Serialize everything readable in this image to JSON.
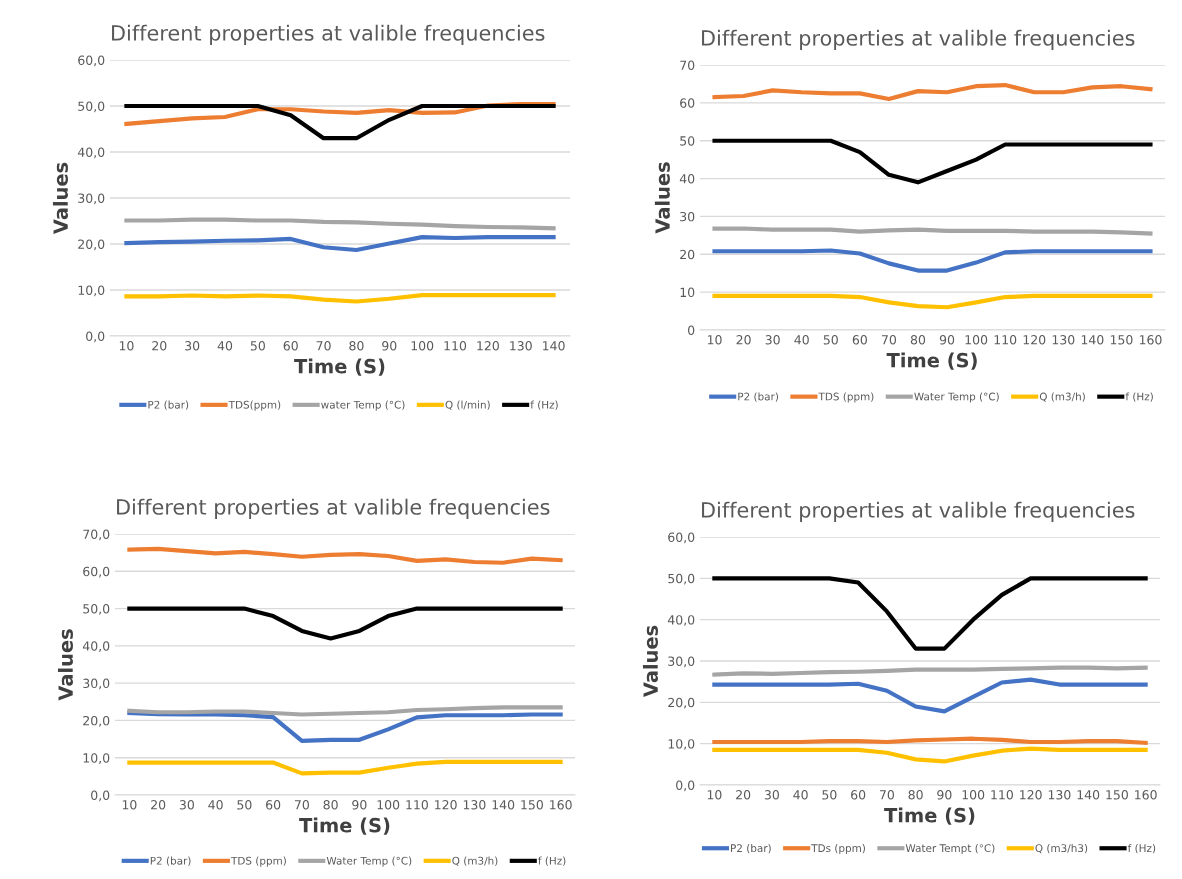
{
  "chart_data": [
    {
      "type": "line",
      "title": "Different properties at valible frequencies",
      "xlabel": "Time (S)",
      "ylabel": "Values",
      "categories": [
        "10",
        "20",
        "30",
        "40",
        "50",
        "60",
        "70",
        "80",
        "90",
        "100",
        "110",
        "120",
        "130",
        "140"
      ],
      "ylim": [
        0,
        60
      ],
      "yticks": [
        {
          "value": 0,
          "label": "0,0"
        },
        {
          "value": 10,
          "label": "10,0"
        },
        {
          "value": 20,
          "label": "20,0"
        },
        {
          "value": 30,
          "label": "30,0"
        },
        {
          "value": 40,
          "label": "40,0"
        },
        {
          "value": 50,
          "label": "50,0"
        },
        {
          "value": 60,
          "label": "60,0"
        }
      ],
      "grid": "y",
      "legend": "bottom",
      "marker": "none",
      "line_style": "solid",
      "series": [
        {
          "name": "P2 (bar)",
          "color": "#4472c4",
          "values": [
            20.2,
            20.4,
            20.5,
            20.7,
            20.8,
            21.1,
            19.3,
            18.7,
            20.1,
            21.5,
            21.3,
            21.5,
            21.5,
            21.5
          ]
        },
        {
          "name": "TDS(ppm)",
          "color": "#ed7d31",
          "values": [
            46.1,
            46.7,
            47.3,
            47.6,
            49.3,
            49.3,
            48.8,
            48.5,
            49.1,
            48.5,
            48.6,
            50.1,
            50.4,
            50.4
          ]
        },
        {
          "name": "water Temp (°C)",
          "color": "#a5a5a5",
          "values": [
            25.1,
            25.1,
            25.3,
            25.3,
            25.1,
            25.1,
            24.8,
            24.7,
            24.4,
            24.2,
            23.9,
            23.7,
            23.6,
            23.4
          ]
        },
        {
          "name": "Q (l/min)",
          "color": "#ffc000",
          "values": [
            8.6,
            8.6,
            8.8,
            8.6,
            8.8,
            8.6,
            7.9,
            7.5,
            8.1,
            8.9,
            8.9,
            8.9,
            8.9,
            8.9
          ]
        },
        {
          "name": "f (Hz)",
          "color": "#000000",
          "values": [
            50,
            50,
            50,
            50,
            50,
            48,
            43,
            43,
            47,
            50,
            50,
            50,
            50,
            50
          ]
        }
      ]
    },
    {
      "type": "line",
      "title": "Different properties at valible frequencies",
      "xlabel": "Time (S)",
      "ylabel": "Values",
      "categories": [
        "10",
        "20",
        "30",
        "40",
        "50",
        "60",
        "70",
        "80",
        "90",
        "100",
        "110",
        "120",
        "130",
        "140",
        "150",
        "160"
      ],
      "ylim": [
        0,
        70
      ],
      "yticks": [
        0,
        10,
        20,
        30,
        40,
        50,
        60,
        70
      ],
      "grid": "y",
      "legend": "bottom",
      "marker": "none",
      "line_style": "solid",
      "series": [
        {
          "name": "P2 (bar)",
          "color": "#4472c4",
          "values": [
            20.8,
            20.8,
            20.8,
            20.8,
            21,
            20.2,
            17.6,
            15.7,
            15.7,
            17.8,
            20.5,
            20.8,
            20.8,
            20.8,
            20.8,
            20.8
          ]
        },
        {
          "name": "TDS (ppm)",
          "color": "#ed7d31",
          "values": [
            61.5,
            61.8,
            63.3,
            62.8,
            62.5,
            62.5,
            61,
            63.1,
            62.8,
            64.4,
            64.7,
            62.8,
            62.8,
            64.1,
            64.4,
            63.6
          ]
        },
        {
          "name": "Water Temp (°C)",
          "color": "#a5a5a5",
          "values": [
            26.8,
            26.8,
            26.5,
            26.5,
            26.5,
            26,
            26.3,
            26.5,
            26.2,
            26.2,
            26.2,
            26,
            26,
            26,
            25.8,
            25.5
          ]
        },
        {
          "name": "Q (m3/h)",
          "color": "#ffc000",
          "values": [
            9,
            9,
            9,
            9,
            9,
            8.7,
            7.3,
            6.3,
            6,
            7.3,
            8.7,
            9,
            9,
            9,
            9,
            9
          ]
        },
        {
          "name": "f (Hz)",
          "color": "#000000",
          "values": [
            50,
            50,
            50,
            50,
            50,
            47,
            41,
            39,
            42,
            45,
            49,
            49,
            49,
            49,
            49,
            49
          ]
        }
      ]
    },
    {
      "type": "line",
      "title": "Different properties at valible frequencies",
      "xlabel": "Time (S)",
      "ylabel": "Values",
      "categories": [
        "10",
        "20",
        "30",
        "40",
        "50",
        "60",
        "70",
        "80",
        "90",
        "100",
        "110",
        "120",
        "130",
        "140",
        "150",
        "160"
      ],
      "ylim": [
        0,
        70
      ],
      "yticks": [
        {
          "value": 0,
          "label": "0,0"
        },
        {
          "value": 10,
          "label": "10,0"
        },
        {
          "value": 20,
          "label": "20,0"
        },
        {
          "value": 30,
          "label": "30,0"
        },
        {
          "value": 40,
          "label": "40,0"
        },
        {
          "value": 50,
          "label": "50,0"
        },
        {
          "value": 60,
          "label": "60,0"
        },
        {
          "value": 70,
          "label": "70,0"
        }
      ],
      "grid": "y",
      "legend": "bottom",
      "marker": "none",
      "line_style": "solid",
      "series": [
        {
          "name": "P2 (bar)",
          "color": "#4472c4",
          "values": [
            22,
            21.7,
            21.6,
            21.6,
            21.4,
            20.9,
            14.5,
            14.8,
            14.8,
            17.6,
            20.8,
            21.4,
            21.4,
            21.4,
            21.6,
            21.6
          ]
        },
        {
          "name": "TDS (ppm)",
          "color": "#ed7d31",
          "values": [
            65.8,
            66,
            65.4,
            64.8,
            65.2,
            64.6,
            63.9,
            64.4,
            64.6,
            64.1,
            62.8,
            63.2,
            62.5,
            62.3,
            63.4,
            63
          ]
        },
        {
          "name": "Water Temp (°C)",
          "color": "#a5a5a5",
          "values": [
            22.6,
            22.2,
            22.2,
            22.4,
            22.4,
            22,
            21.6,
            21.8,
            22,
            22.2,
            22.8,
            23,
            23.3,
            23.5,
            23.5,
            23.5
          ]
        },
        {
          "name": "Q (m3/h)",
          "color": "#ffc000",
          "values": [
            8.7,
            8.7,
            8.7,
            8.7,
            8.7,
            8.7,
            5.8,
            6,
            6,
            7.3,
            8.4,
            8.9,
            8.9,
            8.9,
            8.9,
            8.9
          ]
        },
        {
          "name": "f (Hz)",
          "color": "#000000",
          "values": [
            50,
            50,
            50,
            50,
            50,
            48,
            44,
            42,
            44,
            48,
            50,
            50,
            50,
            50,
            50,
            50
          ]
        }
      ]
    },
    {
      "type": "line",
      "title": "Different properties at valible frequencies",
      "xlabel": "Time (S)",
      "ylabel": "Values",
      "categories": [
        "10",
        "20",
        "30",
        "40",
        "50",
        "60",
        "70",
        "80",
        "90",
        "100",
        "110",
        "120",
        "130",
        "140",
        "150",
        "160"
      ],
      "ylim": [
        0,
        60
      ],
      "yticks": [
        {
          "value": 0,
          "label": "0,0"
        },
        {
          "value": 10,
          "label": "10,0"
        },
        {
          "value": 20,
          "label": "20,0"
        },
        {
          "value": 30,
          "label": "30,0"
        },
        {
          "value": 40,
          "label": "40,0"
        },
        {
          "value": 50,
          "label": "50,0"
        },
        {
          "value": 60,
          "label": "60,0"
        }
      ],
      "grid": "y",
      "legend": "bottom",
      "marker": "none",
      "line_style": "solid",
      "series": [
        {
          "name": "P2 (bar)",
          "color": "#4472c4",
          "values": [
            24.3,
            24.3,
            24.3,
            24.3,
            24.3,
            24.5,
            22.8,
            19,
            17.8,
            21.3,
            24.8,
            25.5,
            24.3,
            24.3,
            24.3,
            24.3
          ]
        },
        {
          "name": "TDs (ppm)",
          "color": "#ed7d31",
          "values": [
            10.4,
            10.4,
            10.4,
            10.4,
            10.6,
            10.6,
            10.4,
            10.8,
            11,
            11.2,
            10.9,
            10.4,
            10.4,
            10.6,
            10.6,
            10.2
          ]
        },
        {
          "name": "Water Tempt (°C)",
          "color": "#a5a5a5",
          "values": [
            26.7,
            27,
            26.9,
            27.1,
            27.3,
            27.4,
            27.6,
            27.9,
            27.9,
            27.9,
            28.1,
            28.2,
            28.4,
            28.4,
            28.2,
            28.4
          ]
        },
        {
          "name": "Q (m3/h3)",
          "color": "#ffc000",
          "values": [
            8.5,
            8.5,
            8.5,
            8.5,
            8.5,
            8.5,
            7.8,
            6.2,
            5.7,
            7.1,
            8.3,
            8.8,
            8.5,
            8.5,
            8.5,
            8.5
          ]
        },
        {
          "name": "f (Hz)",
          "color": "#000000",
          "values": [
            50,
            50,
            50,
            50,
            50,
            49,
            42,
            33,
            33,
            40,
            46,
            50,
            50,
            50,
            50,
            50
          ]
        }
      ]
    }
  ]
}
